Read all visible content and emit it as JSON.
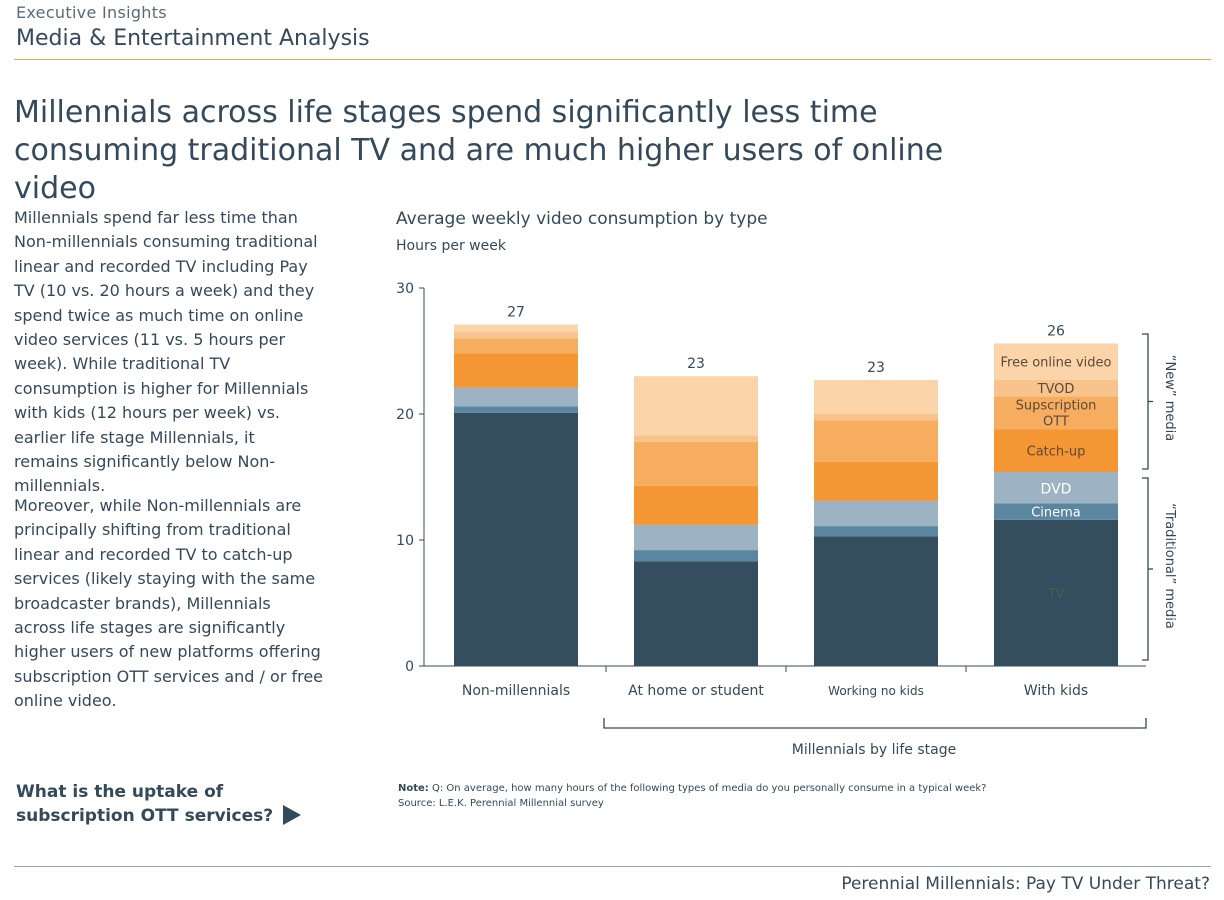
{
  "header": {
    "eyebrow": "Executive Insights",
    "section": "Media & Entertainment Analysis"
  },
  "headline": "Millennials across life stages spend significantly less time consuming traditional TV and are much higher users of online video",
  "body": {
    "paragraph1": "Millennials spend far less time than Non-millennials consuming traditional linear and recorded TV including Pay TV (10 vs. 20 hours a week) and they spend twice as much time on online video services (11 vs. 5 hours per week). While traditional TV consumption is higher for Millennials with kids (12 hours per week) vs. earlier life stage Millennials, it remains significantly below Non-millennials.",
    "paragraph2": "Moreover, while Non-millennials are principally shifting from traditional linear and recorded TV to catch-up services (likely staying with the same broadcaster brands), Millennials across life stages are significantly higher users of new platforms offering subscription OTT services and / or free online video."
  },
  "cta": {
    "label": "What is the uptake of subscription OTT services?"
  },
  "footer": {
    "text": "Perennial Millennials: Pay TV Under Threat?"
  },
  "colors": {
    "tv": "#354e5d",
    "cinema": "#5a86a0",
    "dvd": "#9db3c4",
    "catchup": "#f39633",
    "svod": "#f7ad5f",
    "tvod": "#f8c38c",
    "free": "#fbd5a9",
    "axis": "#34495a",
    "accent_rule": "#f0a64a"
  },
  "chart_data": {
    "type": "bar",
    "stacked": true,
    "title": "Average weekly video consumption by type",
    "ylabel": "Hours per week",
    "ylim": [
      0,
      30
    ],
    "yticks": [
      0,
      10,
      20,
      30
    ],
    "categories": [
      "Non-millennials",
      "At home or student",
      "Working no kids",
      "With kids"
    ],
    "group_label": "Millennials by life stage",
    "totals": [
      "27",
      "23",
      "23",
      "26"
    ],
    "series": [
      {
        "key": "tv",
        "name": "TV",
        "values": [
          20.1,
          8.3,
          10.3,
          11.6
        ]
      },
      {
        "key": "cinema",
        "name": "Cinema",
        "values": [
          0.5,
          0.9,
          0.8,
          1.3
        ]
      },
      {
        "key": "dvd",
        "name": "DVD",
        "values": [
          1.5,
          2.0,
          2.0,
          2.5
        ]
      },
      {
        "key": "catchup",
        "name": "Catch-up",
        "values": [
          2.7,
          3.1,
          3.1,
          3.4
        ]
      },
      {
        "key": "svod",
        "name": "Supscription OTT",
        "values": [
          1.2,
          3.5,
          3.3,
          2.6
        ]
      },
      {
        "key": "tvod",
        "name": "TVOD",
        "values": [
          0.5,
          0.5,
          0.5,
          1.3
        ]
      },
      {
        "key": "free",
        "name": "Free online video",
        "values": [
          0.6,
          4.7,
          2.7,
          2.9
        ]
      }
    ],
    "bracket_labels": {
      "new": "“New” media",
      "traditional": "“Traditional” media"
    },
    "note_label": "Note:",
    "note_text": "Q: On average, how many hours of the following types of media do you personally consume in a typical week?",
    "source": "Source: L.E.K. Perennial Millennial survey"
  }
}
